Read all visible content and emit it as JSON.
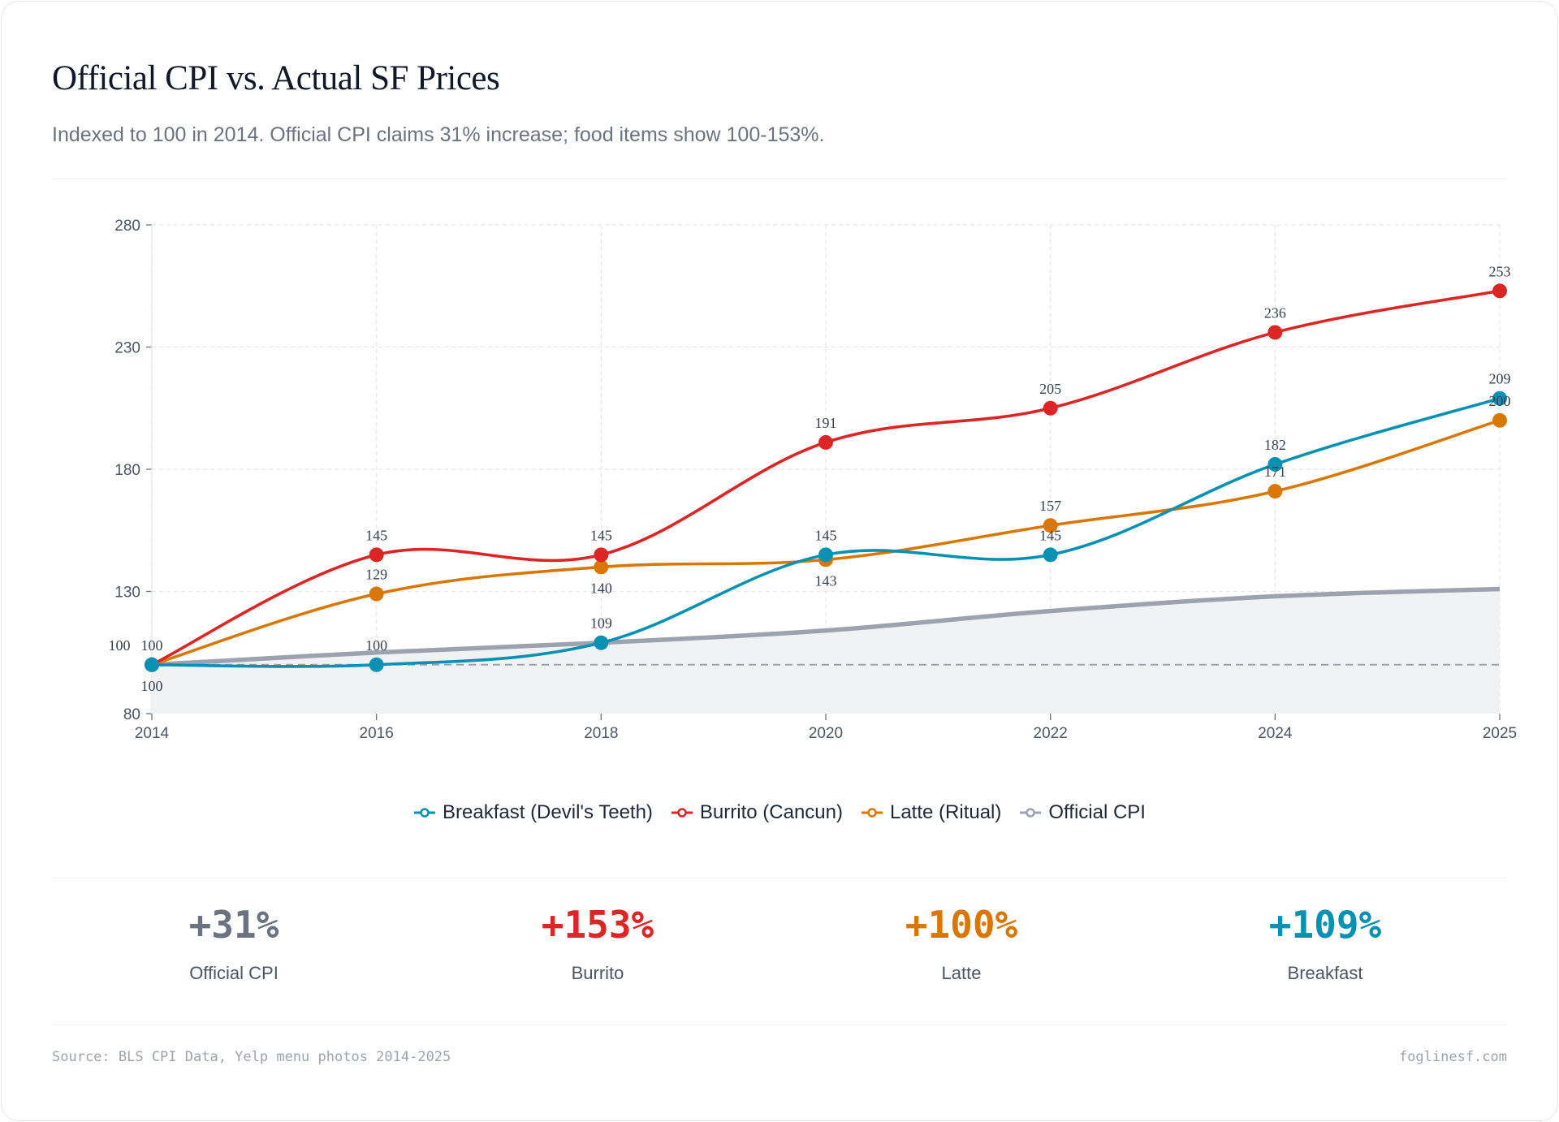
{
  "header": {
    "title": "Official CPI vs. Actual SF Prices",
    "subtitle": "Indexed to 100 in 2014. Official CPI claims 31% increase; food items show 100-153%."
  },
  "chart_data": {
    "type": "line",
    "categories": [
      "2014",
      "2016",
      "2018",
      "2020",
      "2022",
      "2024",
      "2025"
    ],
    "ylim": [
      80,
      280
    ],
    "yticks": [
      80,
      130,
      180,
      230,
      280
    ],
    "grid": true,
    "legend_position": "bottom",
    "reference_line": 100,
    "series": [
      {
        "name": "Breakfast (Devil's Teeth)",
        "color": "#0891b2",
        "values": [
          100,
          100,
          109,
          145,
          145,
          182,
          209
        ],
        "labels": true
      },
      {
        "name": "Burrito (Cancun)",
        "color": "#dc2626",
        "values": [
          100,
          145,
          145,
          191,
          205,
          236,
          253
        ],
        "labels": true
      },
      {
        "name": "Latte (Ritual)",
        "color": "#d97706",
        "values": [
          100,
          129,
          140,
          143,
          157,
          171,
          200
        ],
        "labels": true
      },
      {
        "name": "Official CPI",
        "color": "#9ca3af",
        "values": [
          100,
          105,
          109,
          114,
          122,
          128,
          131
        ],
        "labels": false,
        "fill": "#f1f2f4"
      }
    ]
  },
  "stats": [
    {
      "value": "+31%",
      "label": "Official CPI",
      "color": "#6b7280"
    },
    {
      "value": "+153%",
      "label": "Burrito",
      "color": "#dc2626"
    },
    {
      "value": "+100%",
      "label": "Latte",
      "color": "#d97706"
    },
    {
      "value": "+109%",
      "label": "Breakfast",
      "color": "#0891b2"
    }
  ],
  "footer": {
    "source": "Source: BLS CPI Data, Yelp menu photos 2014-2025",
    "site": "foglinesf.com"
  }
}
